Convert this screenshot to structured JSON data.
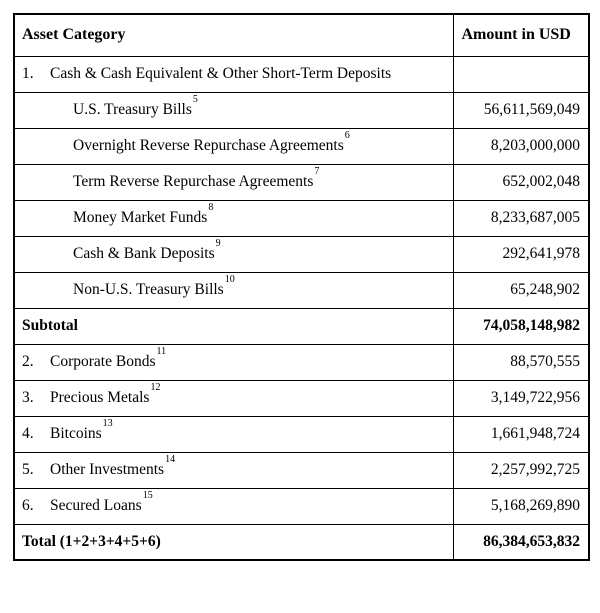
{
  "table": {
    "headers": {
      "category": "Asset Category",
      "amount": "Amount in USD"
    },
    "rows": [
      {
        "type": "item",
        "num": "1.",
        "label": "Cash & Cash Equivalent & Other Short-Term Deposits",
        "sup": "",
        "amount": ""
      },
      {
        "type": "sub",
        "num": "",
        "label": "U.S. Treasury Bills",
        "sup": "5",
        "amount": "56,611,569,049"
      },
      {
        "type": "sub",
        "num": "",
        "label": "Overnight Reverse Repurchase Agreements",
        "sup": "6",
        "amount": "8,203,000,000"
      },
      {
        "type": "sub",
        "num": "",
        "label": "Term Reverse Repurchase Agreements",
        "sup": "7",
        "amount": "652,002,048"
      },
      {
        "type": "sub",
        "num": "",
        "label": "Money Market Funds",
        "sup": "8",
        "amount": "8,233,687,005"
      },
      {
        "type": "sub",
        "num": "",
        "label": "Cash & Bank Deposits",
        "sup": "9",
        "amount": "292,641,978"
      },
      {
        "type": "sub",
        "num": "",
        "label": "Non-U.S. Treasury Bills",
        "sup": "10",
        "amount": "65,248,902"
      },
      {
        "type": "bold",
        "num": "",
        "label": "Subtotal",
        "sup": "",
        "amount": "74,058,148,982"
      },
      {
        "type": "item",
        "num": "2.",
        "label": "Corporate Bonds",
        "sup": "11",
        "amount": "88,570,555"
      },
      {
        "type": "item",
        "num": "3.",
        "label": "Precious Metals",
        "sup": "12",
        "amount": "3,149,722,956"
      },
      {
        "type": "item",
        "num": "4.",
        "label": "Bitcoins",
        "sup": "13",
        "amount": "1,661,948,724"
      },
      {
        "type": "item",
        "num": "5.",
        "label": "Other Investments",
        "sup": "14",
        "amount": "2,257,992,725"
      },
      {
        "type": "item",
        "num": "6.",
        "label": "Secured Loans",
        "sup": "15",
        "amount": "5,168,269,890"
      },
      {
        "type": "bold",
        "num": "",
        "label": "Total (1+2+3+4+5+6)",
        "sup": "",
        "amount": "86,384,653,832"
      }
    ]
  }
}
